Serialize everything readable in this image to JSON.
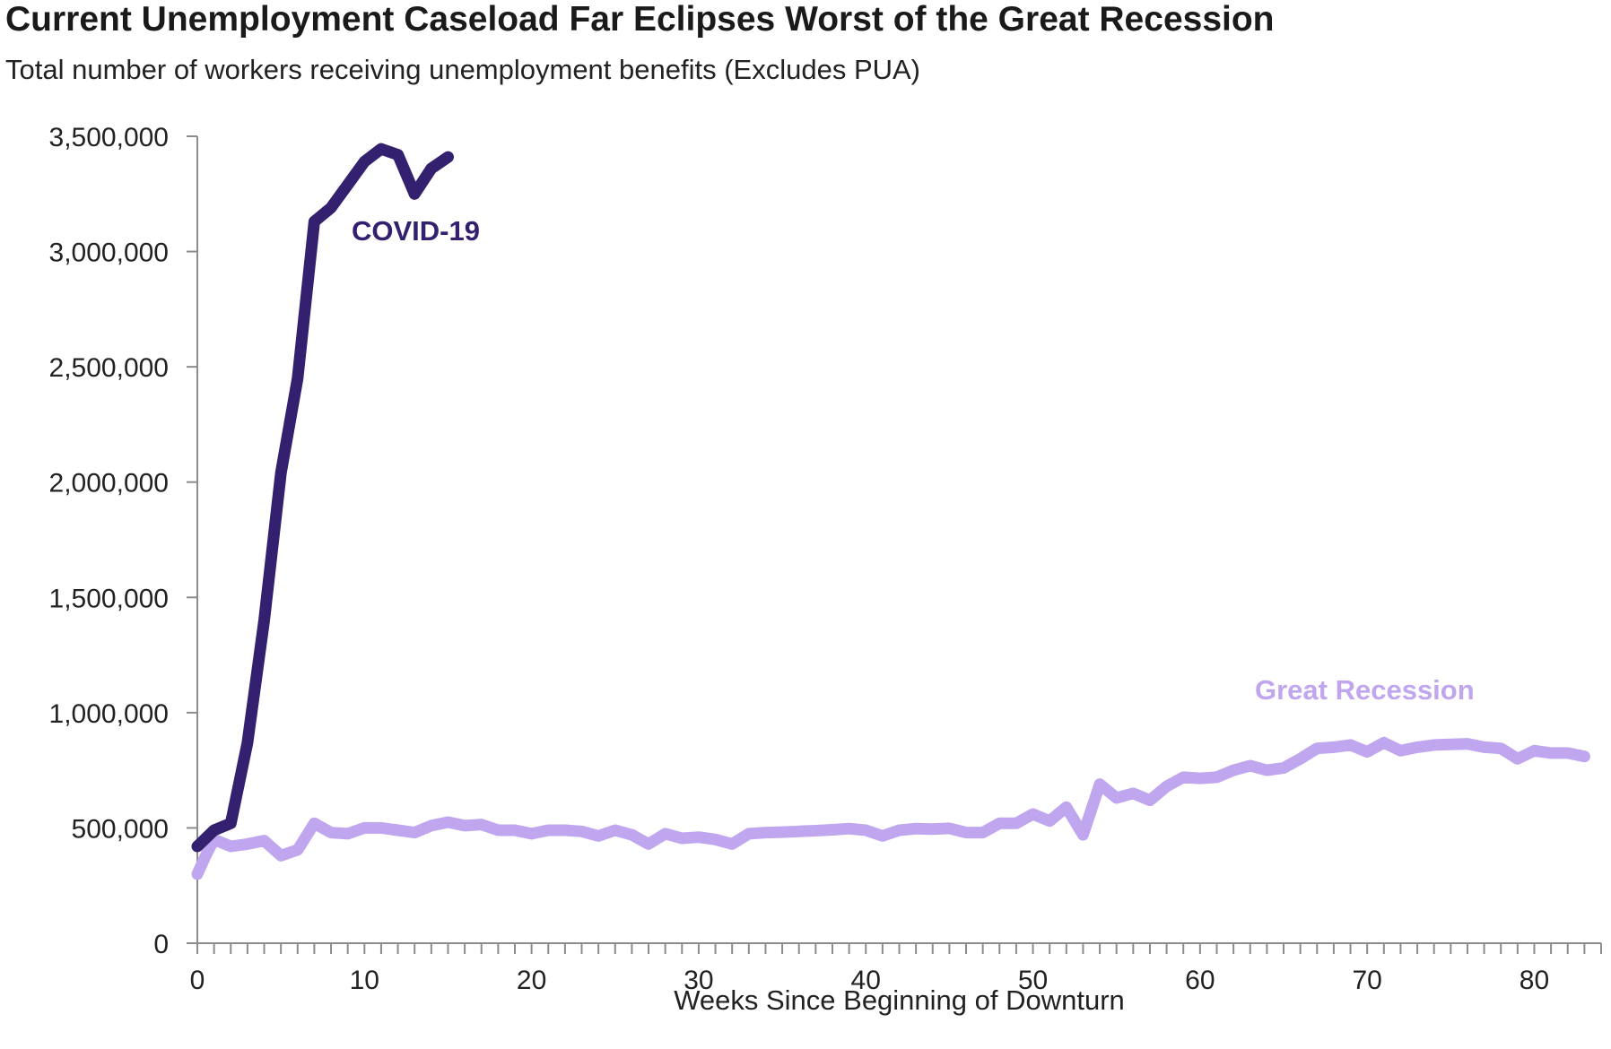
{
  "chart_data": {
    "type": "line",
    "title": "Current Unemployment Caseload Far Eclipses Worst of the Great Recession",
    "subtitle": "Total number of workers receiving unemployment benefits (Excludes PUA)",
    "xlabel": "Weeks Since Beginning of Downturn",
    "ylabel": "",
    "xlim": [
      0,
      84
    ],
    "ylim": [
      0,
      3500000
    ],
    "x_ticks": [
      0,
      10,
      20,
      30,
      40,
      50,
      60,
      70,
      80
    ],
    "y_ticks": [
      0,
      500000,
      1000000,
      1500000,
      2000000,
      2500000,
      3000000,
      3500000
    ],
    "y_tick_labels": [
      "0",
      "500,000",
      "1,000,000",
      "1,500,000",
      "2,000,000",
      "2,500,000",
      "3,000,000",
      "3,500,000"
    ],
    "grid": false,
    "series": [
      {
        "name": "COVID-19",
        "label": "COVID-19",
        "color": "#33206e",
        "x": [
          0,
          1,
          2,
          3,
          4,
          5,
          6,
          7,
          8,
          9,
          10,
          11,
          12,
          13,
          14,
          15
        ],
        "values": [
          420000,
          490000,
          520000,
          870000,
          1400000,
          2040000,
          2450000,
          3130000,
          3190000,
          3290000,
          3390000,
          3445000,
          3420000,
          3250000,
          3360000,
          3410000
        ]
      },
      {
        "name": "Great Recession",
        "label": "Great Recession",
        "color": "#c0a6ef",
        "x": [
          0,
          0.5,
          1,
          2,
          3,
          4,
          5,
          6,
          7,
          8,
          9,
          10,
          11,
          12,
          13,
          14,
          15,
          16,
          17,
          18,
          19,
          20,
          21,
          22,
          23,
          24,
          25,
          26,
          27,
          28,
          29,
          30,
          31,
          32,
          33,
          34,
          35,
          36,
          37,
          38,
          39,
          40,
          41,
          42,
          43,
          44,
          45,
          46,
          47,
          48,
          49,
          50,
          51,
          52,
          53,
          54,
          55,
          56,
          57,
          58,
          59,
          60,
          61,
          62,
          63,
          64,
          65,
          66,
          67,
          68,
          69,
          70,
          71,
          72,
          73,
          74,
          75,
          76,
          77,
          78,
          79,
          80,
          81,
          82,
          83
        ],
        "values": [
          300000,
          380000,
          450000,
          420000,
          430000,
          445000,
          380000,
          405000,
          520000,
          480000,
          475000,
          500000,
          500000,
          490000,
          480000,
          510000,
          525000,
          510000,
          515000,
          490000,
          490000,
          475000,
          490000,
          490000,
          485000,
          465000,
          490000,
          470000,
          430000,
          475000,
          455000,
          460000,
          450000,
          430000,
          475000,
          480000,
          482000,
          485000,
          488000,
          492000,
          497000,
          490000,
          465000,
          490000,
          497000,
          495000,
          498000,
          480000,
          480000,
          520000,
          520000,
          560000,
          530000,
          590000,
          470000,
          690000,
          630000,
          650000,
          620000,
          680000,
          720000,
          715000,
          720000,
          750000,
          770000,
          750000,
          760000,
          800000,
          845000,
          850000,
          860000,
          830000,
          870000,
          835000,
          850000,
          860000,
          862000,
          865000,
          850000,
          845000,
          800000,
          835000,
          825000,
          825000,
          810000
        ]
      }
    ]
  }
}
